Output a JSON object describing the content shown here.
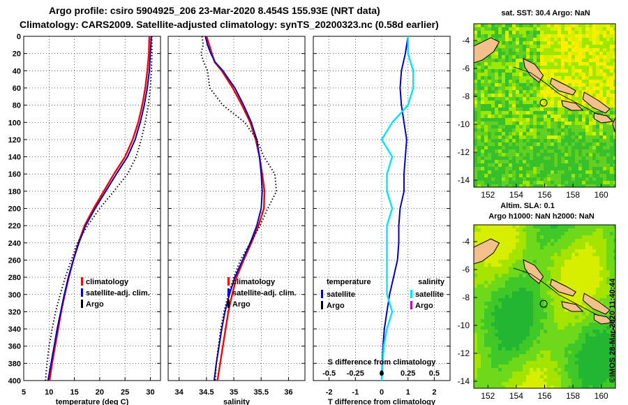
{
  "titles": {
    "line1": "Argo profile: csiro 5904925_206 23-Mar-2020 8.454S 155.93E (NRT data)",
    "line2": "Climatology: CARS2009. Satellite-adjusted climatology: synTS_20200323.nc (0.58d earlier)"
  },
  "stamp": "©IMOS 28-Mar-2020 11:40:44",
  "colors": {
    "climatology": "#ff0000",
    "satellite": "#0000cc",
    "argo": "#000000",
    "cyan": "#00e5ff",
    "magenta": "#c000c0",
    "land": "#f2c08a"
  },
  "chart_data": [
    {
      "type": "line",
      "name": "temperature-profile",
      "xlabel": "temperature (deg C)",
      "ylabel": "",
      "xlim": [
        5,
        32
      ],
      "ylim": [
        400,
        0
      ],
      "xticks": [
        "5",
        "10",
        "15",
        "20",
        "25",
        "30"
      ],
      "xtick_values": [
        5,
        10,
        15,
        20,
        25,
        30
      ],
      "yticks": [
        "0",
        "20",
        "40",
        "60",
        "80",
        "100",
        "120",
        "140",
        "160",
        "180",
        "200",
        "220",
        "240",
        "260",
        "280",
        "300",
        "320",
        "340",
        "360",
        "380",
        "400"
      ],
      "ytick_values": [
        0,
        20,
        40,
        60,
        80,
        100,
        120,
        140,
        160,
        180,
        200,
        220,
        240,
        260,
        280,
        300,
        320,
        340,
        360,
        380,
        400
      ],
      "legend": [
        "climatology",
        "satellite-adj. clim.",
        "Argo"
      ],
      "series": [
        {
          "name": "climatology",
          "depth": [
            0,
            20,
            40,
            60,
            80,
            100,
            120,
            140,
            160,
            180,
            200,
            220,
            240,
            260,
            280,
            300,
            320,
            340,
            360,
            380,
            400
          ],
          "values": [
            29.8,
            29.7,
            29.4,
            29,
            28.4,
            27.6,
            26.5,
            25,
            22.8,
            20.8,
            18.8,
            17,
            15.8,
            14.8,
            13.9,
            13.1,
            12.4,
            11.8,
            11.2,
            10.6,
            10.1
          ]
        },
        {
          "name": "satellite-adj. clim.",
          "depth": [
            0,
            20,
            40,
            60,
            80,
            100,
            120,
            140,
            160,
            180,
            200,
            220,
            240,
            260,
            280,
            300,
            320,
            340,
            360,
            380,
            400
          ],
          "values": [
            30.2,
            30,
            29.8,
            29.4,
            28.8,
            28,
            27,
            25.5,
            23.3,
            21.2,
            19.1,
            17.2,
            15.9,
            14.8,
            13.8,
            13,
            12.3,
            11.6,
            11,
            10.4,
            9.8
          ]
        },
        {
          "name": "Argo",
          "depth": [
            0,
            20,
            40,
            60,
            80,
            100,
            120,
            140,
            160,
            180,
            200,
            220,
            240,
            260,
            280,
            300,
            320,
            340,
            360,
            380,
            400
          ],
          "values": [
            30.3,
            30.3,
            30.2,
            30,
            29.6,
            29,
            28.2,
            27.2,
            25.5,
            22.8,
            20,
            17.6,
            15.6,
            14.4,
            13.2,
            12.2,
            11.3,
            10.6,
            10,
            9.6,
            9.3
          ]
        }
      ]
    },
    {
      "type": "line",
      "name": "salinity-profile",
      "xlabel": "salinity",
      "xlim": [
        33.8,
        36.3
      ],
      "ylim": [
        400,
        0
      ],
      "xticks": [
        "34",
        "34.5",
        "35",
        "35.5",
        "36"
      ],
      "xtick_values": [
        34,
        34.5,
        35,
        35.5,
        36
      ],
      "legend": [
        "climatology",
        "satellite-adj. clim.",
        "Argo"
      ],
      "series": [
        {
          "name": "climatology",
          "depth": [
            0,
            10,
            20,
            30,
            40,
            60,
            80,
            100,
            120,
            140,
            160,
            180,
            200,
            220,
            240,
            260,
            280,
            300,
            320,
            340,
            360,
            380,
            400
          ],
          "values": [
            34.5,
            34.55,
            34.6,
            34.65,
            34.78,
            34.98,
            35.15,
            35.3,
            35.4,
            35.47,
            35.52,
            35.56,
            35.55,
            35.45,
            35.32,
            35.18,
            35.05,
            34.97,
            34.9,
            34.85,
            34.8,
            34.75,
            34.7
          ]
        },
        {
          "name": "satellite-adj. clim.",
          "depth": [
            0,
            10,
            20,
            30,
            40,
            60,
            80,
            100,
            120,
            140,
            160,
            180,
            200,
            220,
            240,
            260,
            280,
            300,
            320,
            340,
            360,
            380,
            400
          ],
          "values": [
            34.48,
            34.52,
            34.58,
            34.66,
            34.8,
            35.02,
            35.18,
            35.32,
            35.42,
            35.47,
            35.5,
            35.52,
            35.5,
            35.42,
            35.3,
            35.16,
            35.02,
            34.92,
            34.84,
            34.78,
            34.73,
            34.68,
            34.64
          ]
        },
        {
          "name": "Argo",
          "depth": [
            0,
            10,
            20,
            30,
            40,
            60,
            80,
            100,
            120,
            140,
            160,
            180,
            200,
            220,
            240,
            260,
            280,
            300,
            320,
            340,
            360,
            380,
            400
          ],
          "values": [
            34.42,
            34.44,
            34.4,
            34.45,
            34.52,
            34.56,
            34.8,
            35.2,
            35.42,
            35.55,
            35.75,
            35.78,
            35.62,
            35.48,
            35.3,
            35.12,
            35,
            34.9,
            34.82,
            34.76,
            34.72,
            34.68,
            34.66
          ]
        }
      ]
    },
    {
      "type": "line",
      "name": "difference-profile",
      "xlabel": "T difference from climatology",
      "xlim": [
        -2.6,
        2.6
      ],
      "ylim": [
        400,
        0
      ],
      "xticks": [
        "-2",
        "-1",
        "0",
        "1",
        "2"
      ],
      "xtick_values": [
        -2,
        -1,
        0,
        1,
        2
      ],
      "top_axis_label": "S difference from climatology",
      "top_ticks": [
        "-0.5",
        "-0.25",
        "0",
        "0.25",
        "0.5"
      ],
      "legend_temperature": {
        "title": "temperature",
        "items": [
          "satellite",
          "Argo"
        ]
      },
      "legend_salinity": {
        "title": "salinity",
        "items": [
          "satellite",
          "Argo"
        ]
      },
      "series": [
        {
          "name": "temperature satellite",
          "depth": [
            0,
            20,
            40,
            60,
            80,
            100,
            120,
            140,
            160,
            180,
            200,
            220,
            240,
            260,
            280,
            300,
            320,
            340,
            360,
            380,
            400
          ],
          "values": [
            1,
            0.9,
            0.75,
            0.7,
            0.75,
            0.85,
            0.95,
            0.9,
            0.85,
            0.85,
            0.7,
            0.65,
            0.65,
            0.6,
            0.45,
            0.3,
            0.2,
            0.1,
            0.05,
            0.02,
            0
          ]
        },
        {
          "name": "salinity satellite",
          "depth": [
            0,
            20,
            40,
            60,
            80,
            100,
            120,
            140,
            160,
            180,
            200,
            220,
            240,
            260,
            280,
            300,
            320,
            340,
            360,
            380,
            400
          ],
          "values": [
            0.25,
            0.25,
            0.3,
            0.3,
            0.25,
            0.1,
            0,
            0.1,
            0.05,
            0.05,
            0.1,
            0.05,
            0.05,
            0.05,
            0.05,
            0.05,
            0.1,
            0.05,
            0.02,
            0.01,
            0
          ]
        }
      ]
    },
    {
      "type": "heatmap",
      "name": "sst-map",
      "title": "sat. SST: 30.4 Argo: NaN",
      "xticks": [
        "152",
        "154",
        "156",
        "158",
        "160"
      ],
      "xtick_values": [
        152,
        154,
        156,
        158,
        160
      ],
      "yticks": [
        "-4",
        "-6",
        "-8",
        "-10",
        "-12",
        "-14"
      ],
      "ytick_values": [
        -4,
        -6,
        -8,
        -10,
        -12,
        -14
      ],
      "xlim": [
        151,
        161
      ],
      "ylim": [
        -14.5,
        -2.8
      ],
      "marker": [
        155.93,
        -8.454
      ]
    },
    {
      "type": "heatmap",
      "name": "altimetry-map",
      "title": "Altim. SLA: 0.1",
      "subtitle": "Argo h1000: NaN h2000: NaN",
      "xticks": [
        "152",
        "154",
        "156",
        "158",
        "160"
      ],
      "xtick_values": [
        152,
        154,
        156,
        158,
        160
      ],
      "yticks": [
        "-4",
        "-6",
        "-8",
        "-10",
        "-12",
        "-14"
      ],
      "ytick_values": [
        -4,
        -6,
        -8,
        -10,
        -12,
        -14
      ],
      "xlim": [
        151,
        161
      ],
      "ylim": [
        -14.5,
        -2.8
      ],
      "marker": [
        155.93,
        -8.454
      ]
    }
  ]
}
